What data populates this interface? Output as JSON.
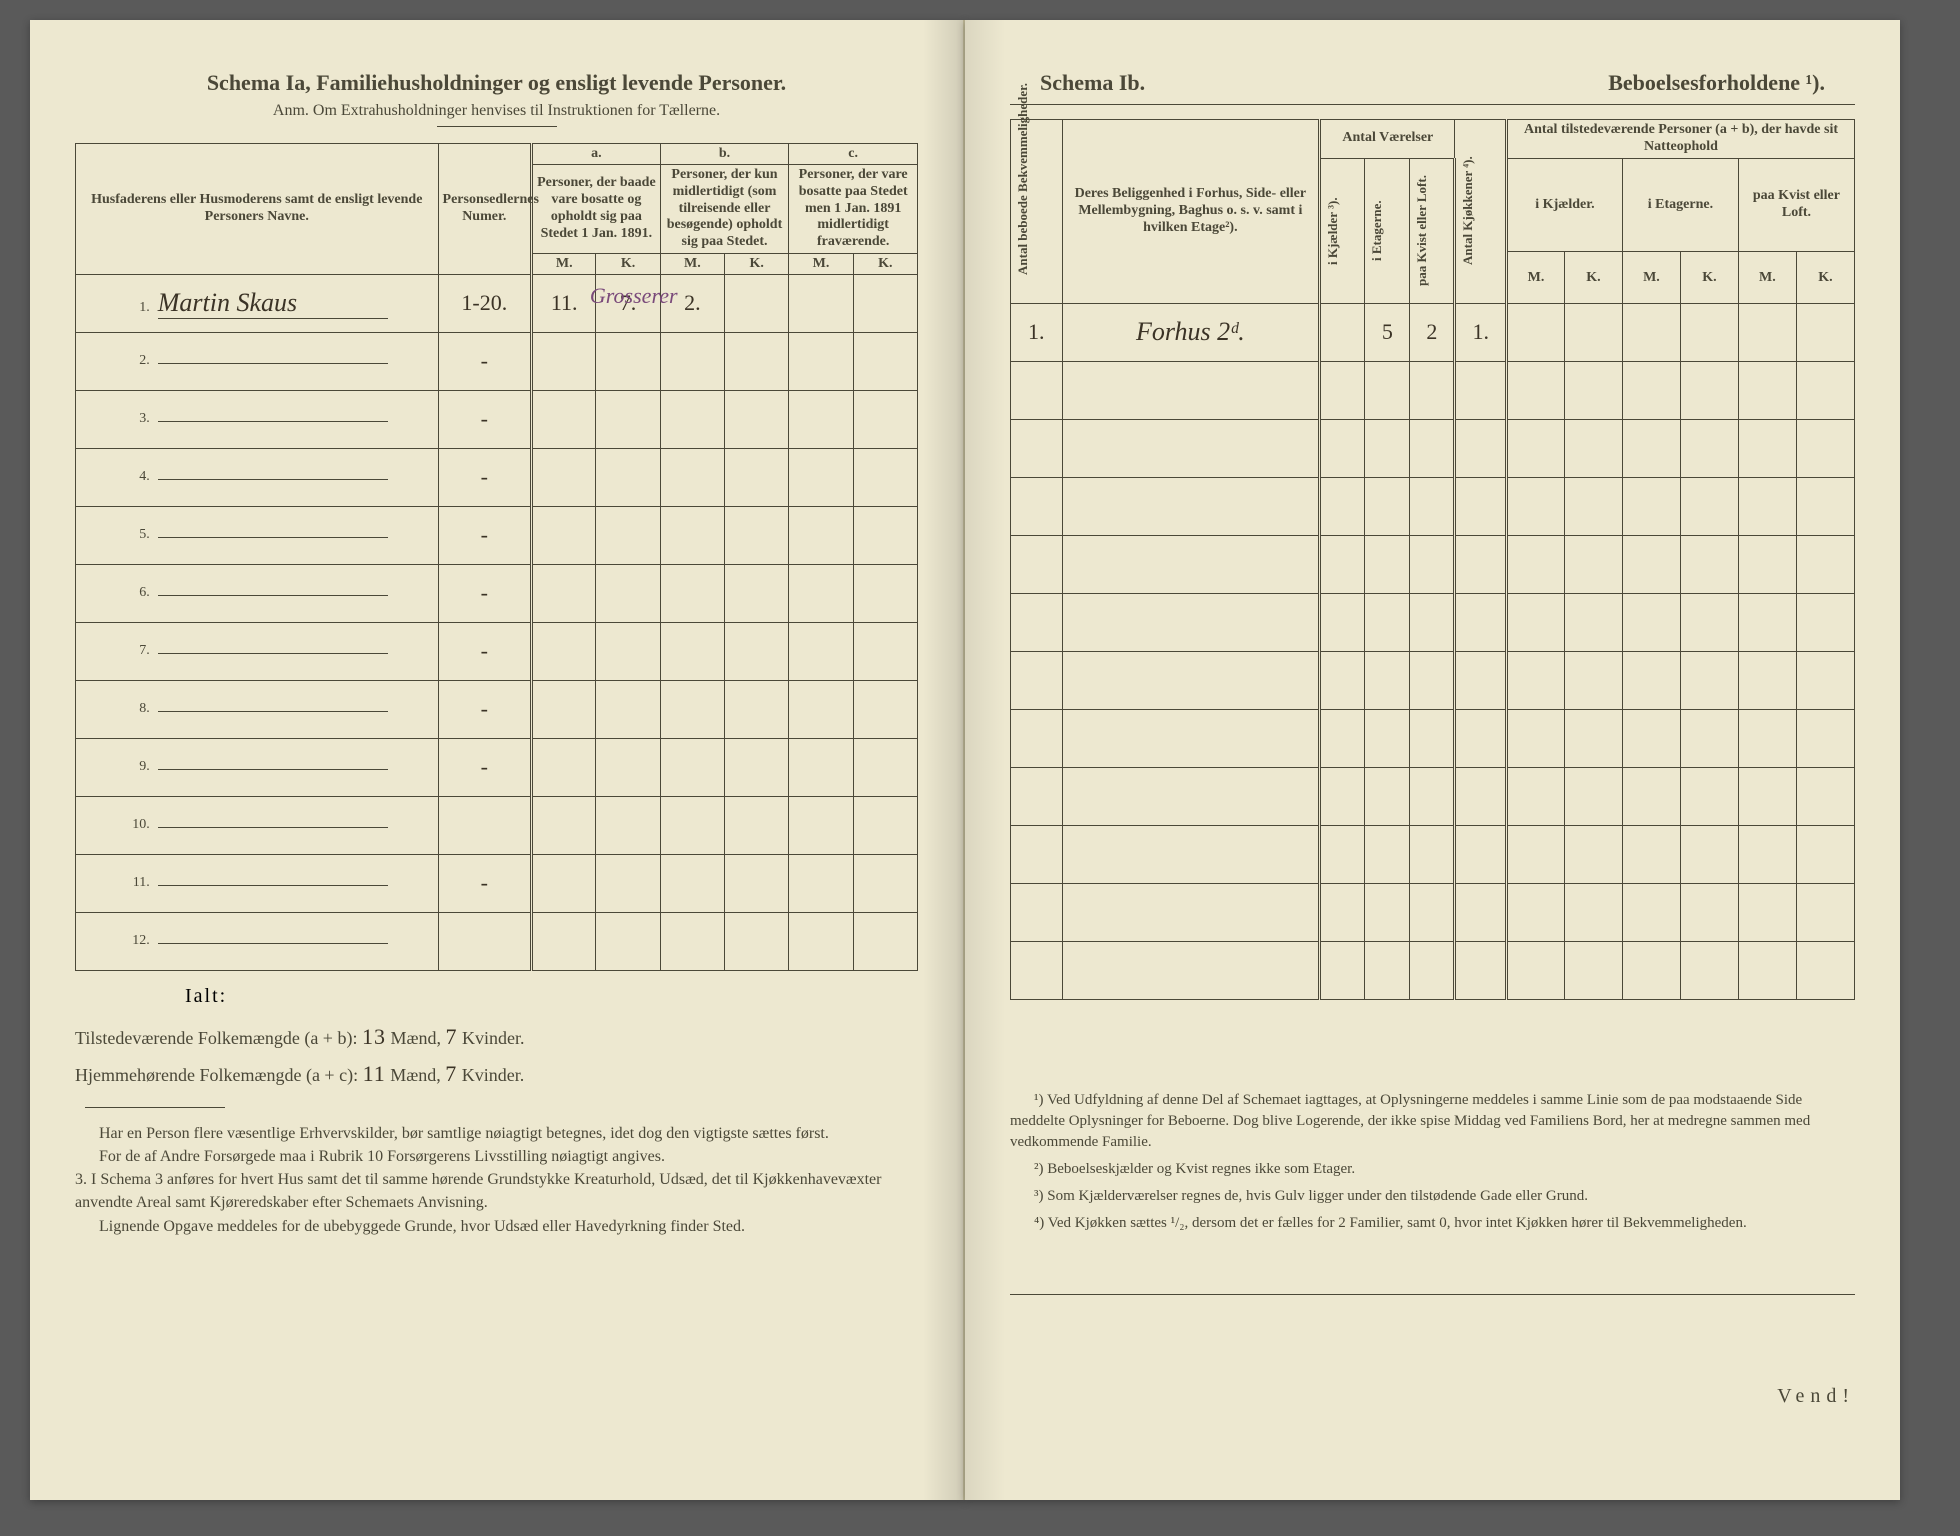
{
  "left": {
    "title_main": "Schema Ia,   Familiehusholdninger og ensligt levende Personer.",
    "title_sub": "Anm. Om Extrahusholdninger henvises til Instruktionen for Tællerne.",
    "headers": {
      "col1": "Husfaderens eller Husmoderens samt de ensligt levende Personers Navne.",
      "col2": "Personsedlernes Numer.",
      "group_a_label": "a.",
      "group_a_text": "Personer, der baade vare bosatte og opholdt sig paa Stedet 1 Jan. 1891.",
      "group_b_label": "b.",
      "group_b_text": "Personer, der kun midlertidigt (som tilreisende eller besøgende) opholdt sig paa Stedet.",
      "group_c_label": "c.",
      "group_c_text": "Personer, der vare bosatte paa Stedet men 1 Jan. 1891 midlertidigt fraværende.",
      "M": "M.",
      "K": "K."
    },
    "rows": [
      {
        "n": "1.",
        "name": "Martin Skaus",
        "ps": "1-20.",
        "aM": "11.",
        "aK": "7.",
        "bM": "2.",
        "bK": "",
        "cM": "",
        "cK": "",
        "note": "Grosserer"
      },
      {
        "n": "2.",
        "name": "",
        "ps": "-",
        "aM": "",
        "aK": "",
        "bM": "",
        "bK": "",
        "cM": "",
        "cK": "",
        "note": ""
      },
      {
        "n": "3.",
        "name": "",
        "ps": "-",
        "aM": "",
        "aK": "",
        "bM": "",
        "bK": "",
        "cM": "",
        "cK": "",
        "note": ""
      },
      {
        "n": "4.",
        "name": "",
        "ps": "-",
        "aM": "",
        "aK": "",
        "bM": "",
        "bK": "",
        "cM": "",
        "cK": "",
        "note": ""
      },
      {
        "n": "5.",
        "name": "",
        "ps": "-",
        "aM": "",
        "aK": "",
        "bM": "",
        "bK": "",
        "cM": "",
        "cK": "",
        "note": ""
      },
      {
        "n": "6.",
        "name": "",
        "ps": "-",
        "aM": "",
        "aK": "",
        "bM": "",
        "bK": "",
        "cM": "",
        "cK": "",
        "note": ""
      },
      {
        "n": "7.",
        "name": "",
        "ps": "-",
        "aM": "",
        "aK": "",
        "bM": "",
        "bK": "",
        "cM": "",
        "cK": "",
        "note": ""
      },
      {
        "n": "8.",
        "name": "",
        "ps": "-",
        "aM": "",
        "aK": "",
        "bM": "",
        "bK": "",
        "cM": "",
        "cK": "",
        "note": ""
      },
      {
        "n": "9.",
        "name": "",
        "ps": "-",
        "aM": "",
        "aK": "",
        "bM": "",
        "bK": "",
        "cM": "",
        "cK": "",
        "note": ""
      },
      {
        "n": "10.",
        "name": "",
        "ps": "",
        "aM": "",
        "aK": "",
        "bM": "",
        "bK": "",
        "cM": "",
        "cK": "",
        "note": ""
      },
      {
        "n": "11.",
        "name": "",
        "ps": "-",
        "aM": "",
        "aK": "",
        "bM": "",
        "bK": "",
        "cM": "",
        "cK": "",
        "note": ""
      },
      {
        "n": "12.",
        "name": "",
        "ps": "",
        "aM": "",
        "aK": "",
        "bM": "",
        "bK": "",
        "cM": "",
        "cK": "",
        "note": ""
      }
    ],
    "ialt": "Ialt:",
    "totals_line1_a": "Tilstedeværende Folkemængde (a + b): ",
    "totals_line1_m": "13",
    "totals_line1_mid": " Mænd, ",
    "totals_line1_k": "7",
    "totals_line1_end": " Kvinder.",
    "totals_line2_a": "Hjemmehørende Folkemængde (a + c): ",
    "totals_line2_m": "11",
    "totals_line2_mid": " Mænd, ",
    "totals_line2_k": "7",
    "totals_line2_end": " Kvinder.",
    "foot_p1": "Har en Person flere væsentlige Erhvervskilder, bør samtlige nøiagtigt betegnes, idet dog den vigtigste sættes først.",
    "foot_p2": "For de af Andre Forsørgede maa i Rubrik 10 Forsørgerens Livsstilling nøiagtigt angives.",
    "foot_p3": "3. I Schema 3 anføres for hvert Hus samt det til samme hørende Grundstykke Kreaturhold, Udsæd, det til Kjøkkenhavevæxter anvendte Areal samt Kjøreredskaber efter Schemaets Anvisning.",
    "foot_p4": "Lignende Opgave meddeles for de ubebyggede Grunde, hvor Udsæd eller Havedyrkning finder Sted."
  },
  "right": {
    "title_left": "Schema Ib.",
    "title_right": "Beboelsesforholdene ¹).",
    "headers": {
      "v1": "Antal beboede Bekvemmeligheder.",
      "col2": "Deres Beliggenhed i Forhus, Side- eller Mellembygning, Baghus o. s. v. samt i hvilken Etage²).",
      "group_rooms": "Antal Værelser",
      "v_kj": "i Kjælder ³).",
      "v_et": "i Etagerne.",
      "v_kv": "paa Kvist eller Loft.",
      "v_kjok": "Antal Kjøkkener ⁴).",
      "group_persons": "Antal tilstedeværende Personer (a + b), der havde sit Natteophold",
      "p_kj": "i Kjælder.",
      "p_et": "i Etagerne.",
      "p_kv": "paa Kvist eller Loft.",
      "M": "M.",
      "K": "K."
    },
    "rows": [
      {
        "n": "1.",
        "loc": "Forhus 2ᵈ.",
        "rk": "",
        "re": "5",
        "rkv": "2",
        "kjok": "1.",
        "kM": "",
        "kK": "",
        "eM": "",
        "eK": "",
        "lM": "",
        "lK": ""
      },
      {
        "n": "",
        "loc": "",
        "rk": "",
        "re": "",
        "rkv": "",
        "kjok": "",
        "kM": "",
        "kK": "",
        "eM": "",
        "eK": "",
        "lM": "",
        "lK": ""
      },
      {
        "n": "",
        "loc": "",
        "rk": "",
        "re": "",
        "rkv": "",
        "kjok": "",
        "kM": "",
        "kK": "",
        "eM": "",
        "eK": "",
        "lM": "",
        "lK": ""
      },
      {
        "n": "",
        "loc": "",
        "rk": "",
        "re": "",
        "rkv": "",
        "kjok": "",
        "kM": "",
        "kK": "",
        "eM": "",
        "eK": "",
        "lM": "",
        "lK": ""
      },
      {
        "n": "",
        "loc": "",
        "rk": "",
        "re": "",
        "rkv": "",
        "kjok": "",
        "kM": "",
        "kK": "",
        "eM": "",
        "eK": "",
        "lM": "",
        "lK": ""
      },
      {
        "n": "",
        "loc": "",
        "rk": "",
        "re": "",
        "rkv": "",
        "kjok": "",
        "kM": "",
        "kK": "",
        "eM": "",
        "eK": "",
        "lM": "",
        "lK": ""
      },
      {
        "n": "",
        "loc": "",
        "rk": "",
        "re": "",
        "rkv": "",
        "kjok": "",
        "kM": "",
        "kK": "",
        "eM": "",
        "eK": "",
        "lM": "",
        "lK": ""
      },
      {
        "n": "",
        "loc": "",
        "rk": "",
        "re": "",
        "rkv": "",
        "kjok": "",
        "kM": "",
        "kK": "",
        "eM": "",
        "eK": "",
        "lM": "",
        "lK": ""
      },
      {
        "n": "",
        "loc": "",
        "rk": "",
        "re": "",
        "rkv": "",
        "kjok": "",
        "kM": "",
        "kK": "",
        "eM": "",
        "eK": "",
        "lM": "",
        "lK": ""
      },
      {
        "n": "",
        "loc": "",
        "rk": "",
        "re": "",
        "rkv": "",
        "kjok": "",
        "kM": "",
        "kK": "",
        "eM": "",
        "eK": "",
        "lM": "",
        "lK": ""
      },
      {
        "n": "",
        "loc": "",
        "rk": "",
        "re": "",
        "rkv": "",
        "kjok": "",
        "kM": "",
        "kK": "",
        "eM": "",
        "eK": "",
        "lM": "",
        "lK": ""
      },
      {
        "n": "",
        "loc": "",
        "rk": "",
        "re": "",
        "rkv": "",
        "kjok": "",
        "kM": "",
        "kK": "",
        "eM": "",
        "eK": "",
        "lM": "",
        "lK": ""
      }
    ],
    "fn1": "¹) Ved Udfyldning af denne Del af Schemaet iagttages, at Oplysningerne meddeles i samme Linie som de paa modstaaende Side meddelte Oplysninger for Beboerne. Dog blive Logerende, der ikke spise Middag ved Familiens Bord, her at medregne sammen med vedkommende Familie.",
    "fn2": "²) Beboelseskjælder og Kvist regnes ikke som Etager.",
    "fn3": "³) Som Kjælderværelser regnes de, hvis Gulv ligger under den tilstødende Gade eller Grund.",
    "fn4": "⁴) Ved Kjøkken sættes ¹/₂, dersom det er fælles for 2 Familier, samt 0, hvor intet Kjøkken hører til Bekvemmeligheden.",
    "vend": "Vend!"
  }
}
